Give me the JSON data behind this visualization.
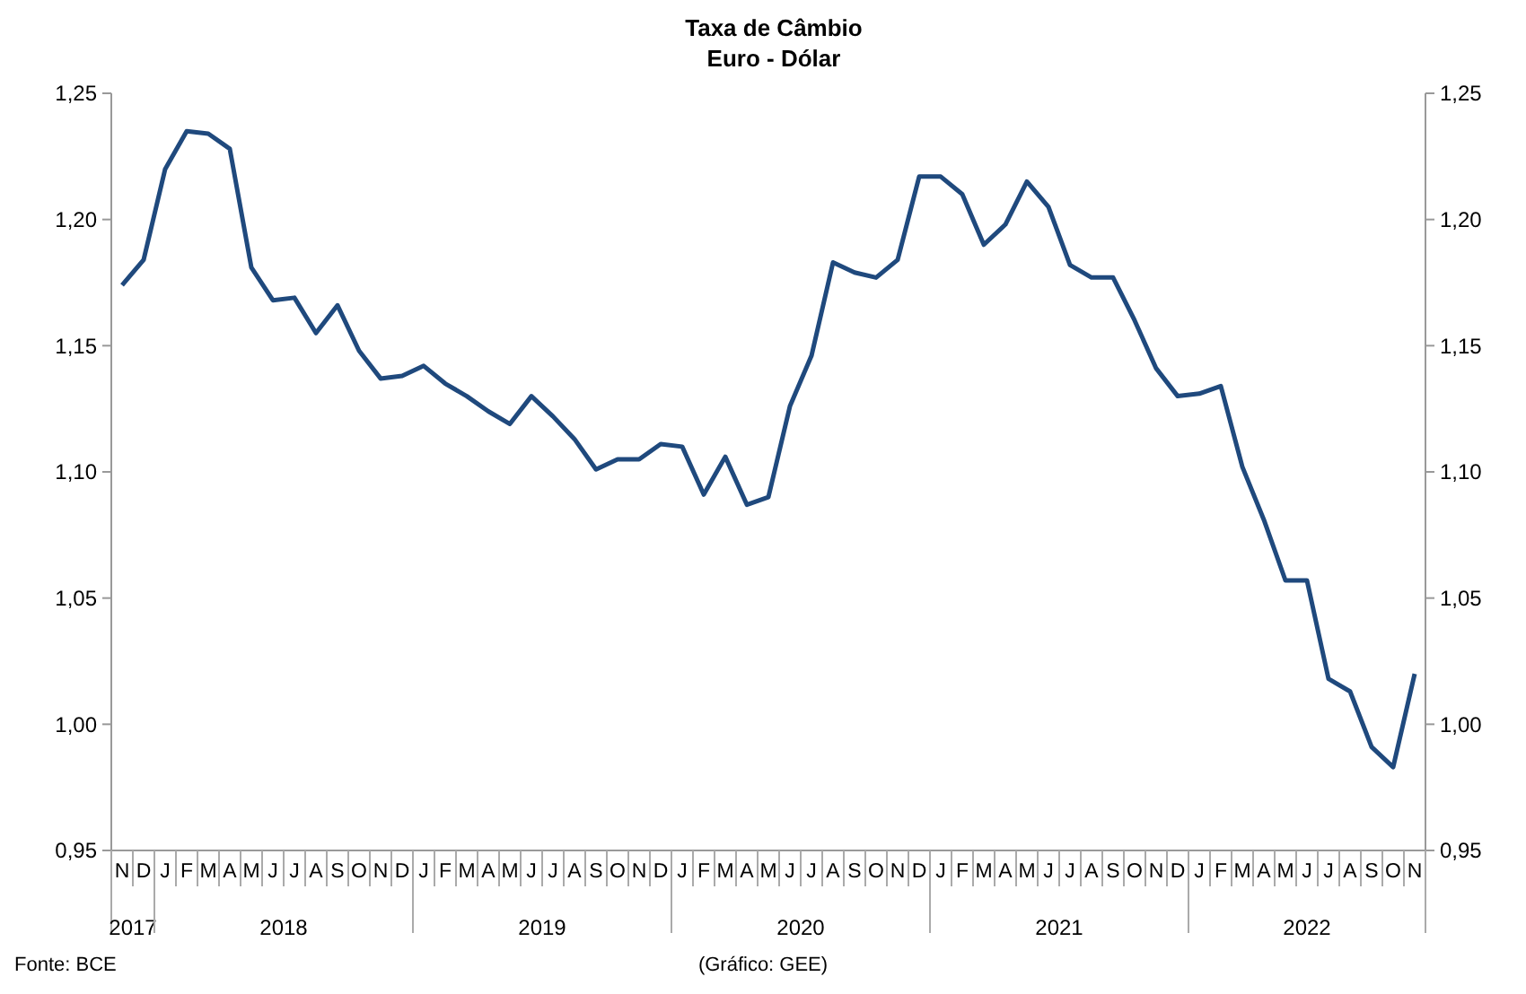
{
  "chart_data": {
    "type": "line",
    "title": "Taxa de Câmbio",
    "subtitle": "Euro - Dólar",
    "categories": [
      "N",
      "D",
      "J",
      "F",
      "M",
      "A",
      "M",
      "J",
      "J",
      "A",
      "S",
      "O",
      "N",
      "D",
      "J",
      "F",
      "M",
      "A",
      "M",
      "J",
      "J",
      "A",
      "S",
      "O",
      "N",
      "D",
      "J",
      "F",
      "M",
      "A",
      "M",
      "J",
      "J",
      "A",
      "S",
      "O",
      "N",
      "D",
      "J",
      "F",
      "M",
      "A",
      "M",
      "J",
      "J",
      "A",
      "S",
      "O",
      "N",
      "D",
      "J",
      "F",
      "M",
      "A",
      "M",
      "J",
      "J",
      "A",
      "S",
      "O",
      "N"
    ],
    "series": [
      {
        "color": "#1f497d",
        "values": [
          1.174,
          1.184,
          1.22,
          1.235,
          1.234,
          1.228,
          1.181,
          1.168,
          1.169,
          1.155,
          1.166,
          1.148,
          1.137,
          1.138,
          1.142,
          1.135,
          1.13,
          1.124,
          1.119,
          1.13,
          1.122,
          1.113,
          1.101,
          1.105,
          1.105,
          1.111,
          1.11,
          1.091,
          1.106,
          1.087,
          1.09,
          1.126,
          1.146,
          1.183,
          1.179,
          1.177,
          1.184,
          1.217,
          1.217,
          1.21,
          1.19,
          1.198,
          1.215,
          1.205,
          1.182,
          1.177,
          1.177,
          1.16,
          1.141,
          1.13,
          1.131,
          1.134,
          1.102,
          1.081,
          1.057,
          1.057,
          1.018,
          1.013,
          0.991,
          0.983,
          1.02
        ]
      }
    ],
    "ylim": [
      0.95,
      1.25
    ],
    "yticks": [
      {
        "value": 0.95,
        "label": "0,95"
      },
      {
        "value": 1.0,
        "label": "1,00"
      },
      {
        "value": 1.05,
        "label": "1,05"
      },
      {
        "value": 1.1,
        "label": "1,10"
      },
      {
        "value": 1.15,
        "label": "1,15"
      },
      {
        "value": 1.2,
        "label": "1,20"
      },
      {
        "value": 1.25,
        "label": "1,25"
      }
    ],
    "y2lim": [
      0.95,
      1.25
    ],
    "y2ticks": [
      {
        "value": 0.95,
        "label": "0,95"
      },
      {
        "value": 1.0,
        "label": "1,00"
      },
      {
        "value": 1.05,
        "label": "1,05"
      },
      {
        "value": 1.1,
        "label": "1,10"
      },
      {
        "value": 1.15,
        "label": "1,15"
      },
      {
        "value": 1.2,
        "label": "1,20"
      },
      {
        "value": 1.25,
        "label": "1,25"
      }
    ],
    "annotations": [
      "2017",
      "2018",
      "2019",
      "2020",
      "2021",
      "2022",
      "Fonte: BCE",
      "(Gráfico: GEE)"
    ],
    "grid": false,
    "marker": "none",
    "line_style": "solid"
  }
}
